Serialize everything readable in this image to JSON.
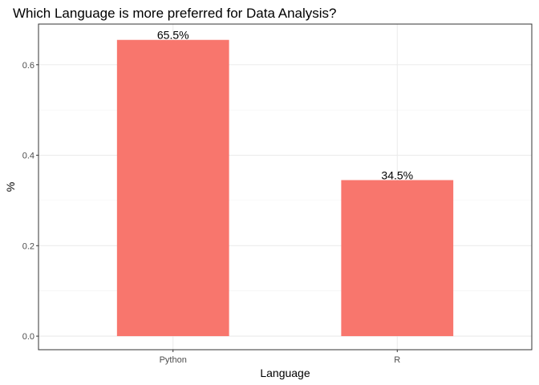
{
  "chart_data": {
    "type": "bar",
    "title": "Which Language is more preferred for Data Analysis?",
    "xlabel": "Language",
    "ylabel": "%",
    "categories": [
      "Python",
      "R"
    ],
    "values": [
      0.655,
      0.345
    ],
    "data_labels": [
      "65.5%",
      "34.5%"
    ],
    "y_ticks": [
      0.0,
      0.2,
      0.4,
      0.6
    ],
    "y_tick_labels": [
      "0.0",
      "0.2",
      "0.4",
      "0.6"
    ],
    "ylim": [
      -0.03,
      0.69
    ],
    "grid": true,
    "legend": "none",
    "bar_color": "#F8766D"
  }
}
